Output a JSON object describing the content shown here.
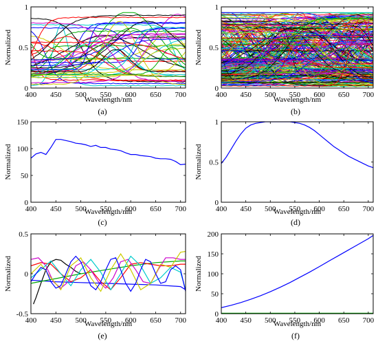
{
  "chart_data": [
    {
      "panel": "(a)",
      "type": "line",
      "xlabel": "Wavelength/nm",
      "ylabel": "Normalized",
      "xlim": [
        400,
        710
      ],
      "ylim": [
        0,
        1
      ],
      "xticks": [
        "400",
        "450",
        "500",
        "550",
        "600",
        "650",
        "700"
      ],
      "yticks": [
        "0",
        "0.5",
        "1"
      ],
      "ytick_values": [
        0,
        0.5,
        1
      ],
      "description_series": "many spectral curves (sigmoidal/bell shapes), approx. 45 curves",
      "curve_count": 45,
      "curve_seed": 11,
      "colors": [
        "#0000ff",
        "#ff0000",
        "#00aa00",
        "#00cccc",
        "#cc00cc",
        "#cccc00",
        "#000000"
      ]
    },
    {
      "panel": "(b)",
      "type": "line",
      "xlabel": "Wavelength/nm",
      "ylabel": "Normalized",
      "xlim": [
        400,
        710
      ],
      "ylim": [
        0,
        1
      ],
      "xticks": [
        "400",
        "450",
        "500",
        "550",
        "600",
        "650",
        "700"
      ],
      "yticks": [
        "0",
        "0.5",
        "1"
      ],
      "ytick_values": [
        0,
        0.5,
        1
      ],
      "description_series": "dense set of several hundred spectral curves",
      "curve_count": 260,
      "curve_seed": 29,
      "colors": [
        "#0000ff",
        "#ff0000",
        "#00aa00",
        "#00cccc",
        "#cc00cc",
        "#cccc00",
        "#000000"
      ]
    },
    {
      "panel": "(c)",
      "type": "line",
      "xlabel": "Wavelength/nm",
      "ylabel": "Normalized",
      "xlim": [
        400,
        710
      ],
      "ylim": [
        0,
        150
      ],
      "xticks": [
        "400",
        "450",
        "500",
        "550",
        "600",
        "650",
        "700"
      ],
      "yticks": [
        "0",
        "50",
        "100",
        "150"
      ],
      "ytick_values": [
        0,
        50,
        100,
        150
      ],
      "series": [
        {
          "color": "#0000ff",
          "x": [
            400,
            410,
            420,
            430,
            440,
            450,
            460,
            470,
            480,
            490,
            500,
            510,
            520,
            530,
            540,
            550,
            560,
            570,
            580,
            590,
            600,
            610,
            620,
            630,
            640,
            650,
            660,
            670,
            680,
            690,
            700,
            710
          ],
          "y": [
            82,
            90,
            93,
            89,
            102,
            117,
            117,
            115,
            113,
            110,
            109,
            107,
            104,
            106,
            102,
            102,
            99,
            98,
            96,
            92,
            89,
            89,
            87,
            86,
            85,
            82,
            81,
            81,
            80,
            76,
            70,
            71
          ]
        }
      ]
    },
    {
      "panel": "(d)",
      "type": "line",
      "xlabel": "Wavelength/nm",
      "ylabel": "Normalized",
      "xlim": [
        400,
        710
      ],
      "ylim": [
        0,
        1
      ],
      "xticks": [
        "400",
        "450",
        "500",
        "550",
        "600",
        "650",
        "700"
      ],
      "yticks": [
        "0",
        "0.5",
        "1"
      ],
      "ytick_values": [
        0,
        0.5,
        1
      ],
      "series": [
        {
          "color": "#0000ff",
          "x": [
            400,
            410,
            420,
            430,
            440,
            450,
            460,
            470,
            480,
            490,
            500,
            510,
            520,
            530,
            540,
            550,
            560,
            570,
            580,
            590,
            600,
            610,
            620,
            630,
            640,
            650,
            660,
            670,
            680,
            690,
            700,
            710
          ],
          "y": [
            0.48,
            0.56,
            0.66,
            0.76,
            0.85,
            0.92,
            0.96,
            0.98,
            0.99,
            1.0,
            1.0,
            1.0,
            1.0,
            1.0,
            1.0,
            0.99,
            0.98,
            0.96,
            0.93,
            0.89,
            0.84,
            0.79,
            0.74,
            0.69,
            0.65,
            0.61,
            0.57,
            0.54,
            0.51,
            0.48,
            0.45,
            0.43
          ]
        }
      ]
    },
    {
      "panel": "(e)",
      "type": "line",
      "xlabel": "Wavelength/nm",
      "ylabel": "Normalized",
      "xlim": [
        400,
        710
      ],
      "ylim": [
        -0.5,
        0.5
      ],
      "xticks": [
        "400",
        "450",
        "500",
        "550",
        "600",
        "650",
        "700"
      ],
      "yticks": [
        "-0.5",
        "0",
        "0.5"
      ],
      "ytick_values": [
        -0.5,
        0,
        0.5
      ],
      "series": [
        {
          "color": "#000000",
          "x": [
            405,
            410,
            420,
            430,
            440,
            450,
            460,
            470,
            480,
            490,
            500
          ],
          "y": [
            -0.38,
            -0.3,
            -0.12,
            0.05,
            0.15,
            0.18,
            0.17,
            0.12,
            0.08,
            0.03,
            0.0
          ]
        },
        {
          "color": "#0000ff",
          "x": [
            400,
            450,
            500,
            550,
            600,
            650,
            700,
            710
          ],
          "y": [
            -0.08,
            -0.1,
            -0.11,
            -0.12,
            -0.13,
            -0.14,
            -0.16,
            -0.2
          ]
        },
        {
          "color": "#00aa00",
          "x": [
            400,
            450,
            500,
            550,
            600,
            650,
            700,
            710
          ],
          "y": [
            -0.12,
            -0.06,
            0.0,
            0.05,
            0.1,
            0.14,
            0.16,
            0.16
          ]
        },
        {
          "color": "#ff0000",
          "x": [
            400,
            420,
            440,
            460,
            480,
            500,
            520,
            540,
            560,
            580,
            600,
            620,
            640,
            660,
            680,
            700,
            710
          ],
          "y": [
            0.1,
            0.14,
            0.12,
            0.0,
            -0.1,
            -0.05,
            0.05,
            -0.1,
            -0.2,
            -0.05,
            0.12,
            0.14,
            0.12,
            0.1,
            0.1,
            0.12,
            0.12
          ]
        },
        {
          "color": "#cc00cc",
          "x": [
            400,
            415,
            430,
            445,
            460,
            475,
            490,
            505,
            520,
            535,
            550,
            565,
            580,
            595,
            610,
            625,
            640,
            655,
            670,
            685,
            700,
            710
          ],
          "y": [
            0.18,
            0.2,
            0.1,
            -0.1,
            -0.18,
            -0.1,
            0.1,
            0.15,
            0.05,
            -0.1,
            -0.18,
            -0.05,
            0.15,
            0.18,
            0.05,
            -0.1,
            -0.12,
            0.05,
            0.2,
            0.2,
            0.18,
            0.18
          ]
        },
        {
          "color": "#00cccc",
          "x": [
            400,
            420,
            440,
            460,
            480,
            500,
            520,
            540,
            560,
            580,
            600,
            620,
            640,
            660,
            680,
            700,
            710
          ],
          "y": [
            -0.05,
            0.05,
            0.16,
            0.0,
            -0.15,
            0.05,
            0.18,
            0.02,
            -0.2,
            0.0,
            0.22,
            0.1,
            -0.12,
            -0.05,
            0.08,
            0.02,
            -0.2
          ]
        },
        {
          "color": "#cccc00",
          "x": [
            400,
            420,
            440,
            460,
            480,
            500,
            520,
            540,
            560,
            580,
            600,
            620,
            640,
            660,
            680,
            700,
            710
          ],
          "y": [
            0.0,
            0.12,
            -0.05,
            -0.2,
            0.1,
            0.2,
            -0.05,
            -0.22,
            0.05,
            0.25,
            0.05,
            -0.2,
            -0.12,
            0.12,
            0.08,
            0.27,
            0.28
          ]
        },
        {
          "color": "#0000ff",
          "x": [
            400,
            410,
            420,
            430,
            440,
            450,
            460,
            470,
            480,
            490,
            500,
            510,
            520,
            530,
            540,
            550,
            560,
            570,
            580,
            590,
            600,
            610,
            620,
            630,
            640,
            650,
            660,
            670,
            680,
            690,
            700,
            710
          ],
          "y": [
            -0.1,
            0.0,
            0.08,
            0.05,
            -0.1,
            -0.18,
            -0.15,
            0.0,
            0.15,
            0.22,
            0.15,
            0.0,
            -0.15,
            -0.2,
            -0.1,
            0.05,
            0.18,
            0.2,
            0.05,
            -0.12,
            -0.22,
            -0.12,
            0.05,
            0.18,
            0.15,
            0.0,
            -0.12,
            -0.1,
            0.05,
            0.1,
            0.05,
            -0.22
          ]
        }
      ]
    },
    {
      "panel": "(f)",
      "type": "line",
      "xlabel": "Wavelength/nm",
      "ylabel": "Normalized",
      "xlim": [
        400,
        710
      ],
      "ylim": [
        0,
        200
      ],
      "xticks": [
        "400",
        "450",
        "500",
        "550",
        "600",
        "650",
        "700"
      ],
      "yticks": [
        "0",
        "50",
        "100",
        "150",
        "200"
      ],
      "ytick_values": [
        0,
        50,
        100,
        150,
        200
      ],
      "series": [
        {
          "color": "#0000ff",
          "x": [
            400,
            420,
            440,
            460,
            480,
            500,
            520,
            540,
            560,
            580,
            600,
            620,
            640,
            660,
            680,
            700,
            710
          ],
          "y": [
            15,
            21,
            28,
            36,
            45,
            55,
            66,
            78,
            91,
            104,
            118,
            132,
            146,
            160,
            174,
            188,
            196
          ]
        },
        {
          "color": "#00aa00",
          "x": [
            400,
            710
          ],
          "y": [
            1,
            1
          ]
        }
      ]
    }
  ]
}
